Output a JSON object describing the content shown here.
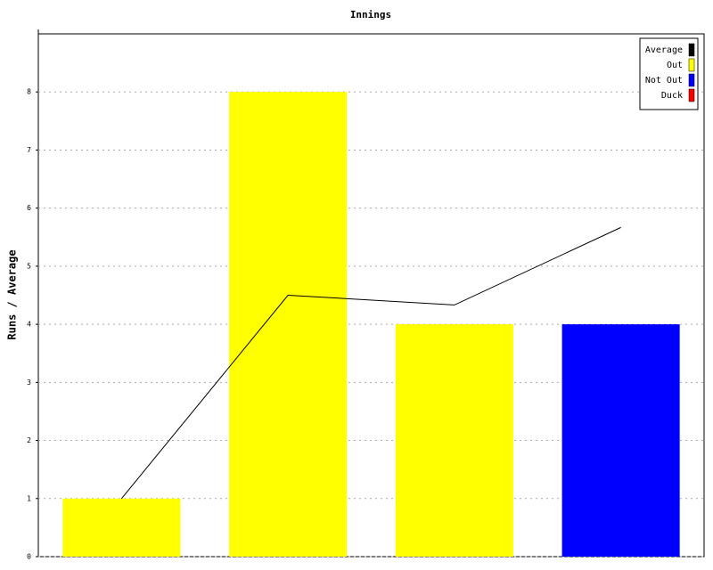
{
  "chart_data": {
    "type": "bar",
    "title": "Innings",
    "y_label": "Runs / Average",
    "categories": [
      null,
      null,
      null,
      null
    ],
    "series": [
      {
        "name": "Average",
        "type": "line",
        "color": "#000000",
        "values": [
          1,
          4.5,
          4.333,
          5.667
        ]
      },
      {
        "name": "Out",
        "color": "#ffff00",
        "values": [
          1,
          8,
          4,
          null
        ]
      },
      {
        "name": "Not Out",
        "color": "#0000ff",
        "values": [
          null,
          null,
          null,
          4
        ]
      },
      {
        "name": "Duck",
        "color": "#ff0000",
        "values": [
          null,
          null,
          null,
          null
        ]
      }
    ],
    "ylim": [
      0,
      9
    ],
    "yticks": [
      0,
      1,
      2,
      3,
      4,
      5,
      6,
      7,
      8
    ],
    "grid": true,
    "legend": "top-right"
  }
}
